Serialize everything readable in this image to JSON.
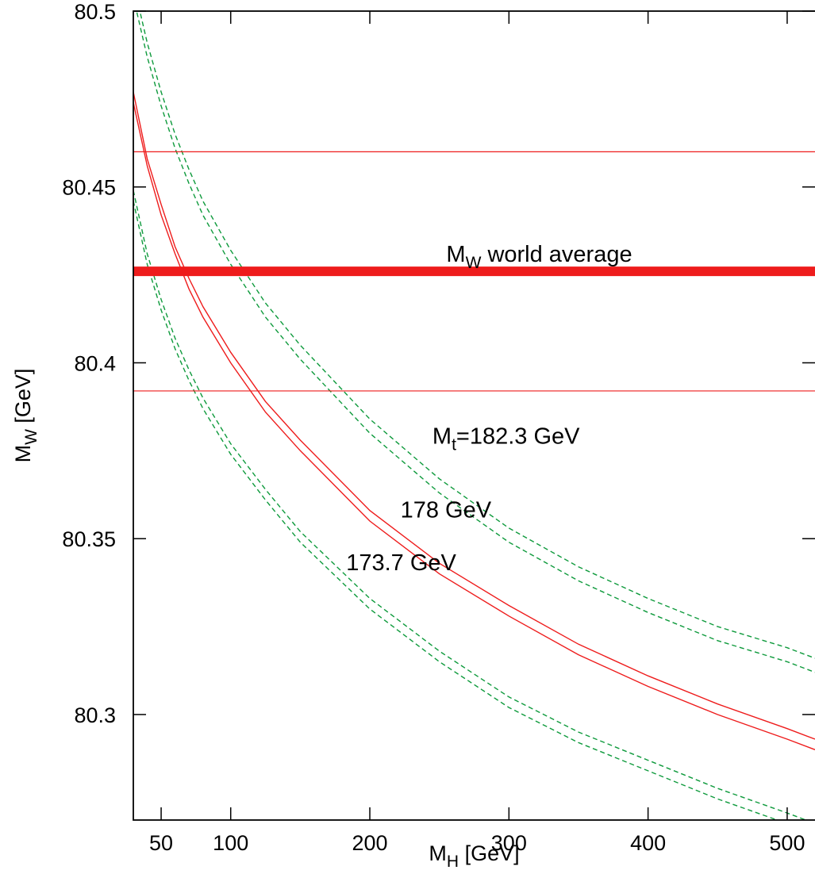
{
  "chart_data": {
    "type": "line",
    "xlabel": {
      "main": "M",
      "sub": "H",
      "rest": " [GeV]"
    },
    "ylabel": {
      "main": "M",
      "sub": "W",
      "rest": " [GeV]"
    },
    "xlim": [
      30,
      520
    ],
    "ylim": [
      80.27,
      80.5
    ],
    "x_ticks": [
      50,
      100,
      200,
      300,
      400,
      500
    ],
    "x_tick_labels": [
      "50",
      "100",
      "200",
      "300",
      "400",
      "500"
    ],
    "y_ticks": [
      80.3,
      80.35,
      80.4,
      80.45,
      80.5
    ],
    "y_tick_labels": [
      "80.3",
      "80.35",
      "80.4",
      "80.45",
      "80.5"
    ],
    "grid": false,
    "colors": {
      "red": "#ee1c1c",
      "green": "#0e9a3c",
      "axis": "#000000"
    },
    "world_average": {
      "value": 80.426,
      "upper": 80.46,
      "lower": 80.392,
      "label": {
        "main": "M",
        "sub": "W",
        "rest": " world average"
      }
    },
    "series": [
      {
        "style": "dashed",
        "color": "green",
        "x": [
          30,
          40,
          50,
          60,
          70,
          80,
          100,
          125,
          150,
          200,
          250,
          300,
          350,
          400,
          450,
          500,
          520
        ],
        "y": [
          80.508,
          80.491,
          80.477,
          80.465,
          80.455,
          80.446,
          80.432,
          80.417,
          80.405,
          80.384,
          80.367,
          80.353,
          80.342,
          80.333,
          80.325,
          80.319,
          80.316
        ]
      },
      {
        "style": "dashed",
        "color": "green",
        "x": [
          30,
          40,
          50,
          60,
          70,
          80,
          100,
          125,
          150,
          200,
          250,
          300,
          350,
          400,
          450,
          500,
          520
        ],
        "y": [
          80.504,
          80.487,
          80.473,
          80.461,
          80.451,
          80.442,
          80.428,
          80.413,
          80.401,
          80.38,
          80.363,
          80.349,
          80.338,
          80.329,
          80.321,
          80.315,
          80.312
        ]
      },
      {
        "style": "solid",
        "color": "red",
        "x": [
          30,
          40,
          50,
          60,
          70,
          80,
          100,
          125,
          150,
          200,
          250,
          300,
          350,
          400,
          450,
          500,
          520
        ],
        "y": [
          80.477,
          80.458,
          80.445,
          80.433,
          80.424,
          80.416,
          80.403,
          80.389,
          80.378,
          80.358,
          80.343,
          80.331,
          80.32,
          80.311,
          80.303,
          80.296,
          80.293
        ]
      },
      {
        "style": "solid",
        "color": "red",
        "x": [
          30,
          40,
          50,
          60,
          70,
          80,
          100,
          125,
          150,
          200,
          250,
          300,
          350,
          400,
          450,
          500,
          520
        ],
        "y": [
          80.474,
          80.456,
          80.442,
          80.431,
          80.421,
          80.413,
          80.4,
          80.386,
          80.375,
          80.355,
          80.34,
          80.328,
          80.317,
          80.308,
          80.3,
          80.293,
          80.29
        ]
      },
      {
        "style": "dashed",
        "color": "green",
        "x": [
          30,
          40,
          50,
          60,
          70,
          80,
          100,
          125,
          150,
          200,
          250,
          300,
          350,
          400,
          450,
          500,
          520
        ],
        "y": [
          80.449,
          80.431,
          80.418,
          80.407,
          80.398,
          80.39,
          80.377,
          80.364,
          80.352,
          80.333,
          80.318,
          80.305,
          80.295,
          80.287,
          80.279,
          80.272,
          80.269
        ]
      },
      {
        "style": "dashed",
        "color": "green",
        "x": [
          30,
          40,
          50,
          60,
          70,
          80,
          100,
          125,
          150,
          200,
          250,
          300,
          350,
          400,
          450,
          500,
          520
        ],
        "y": [
          80.446,
          80.428,
          80.415,
          80.404,
          80.395,
          80.387,
          80.374,
          80.361,
          80.349,
          80.33,
          80.315,
          80.302,
          80.292,
          80.284,
          80.276,
          80.269,
          80.266
        ]
      }
    ],
    "annotations": [
      {
        "main": "M",
        "sub": "t",
        "rest": "=182.3 GeV",
        "x": 245,
        "y": 80.377
      },
      {
        "main": "",
        "sub": "",
        "rest": "178 GeV",
        "x": 222,
        "y": 80.356
      },
      {
        "main": "",
        "sub": "",
        "rest": "173.7 GeV",
        "x": 183,
        "y": 80.341
      }
    ]
  }
}
